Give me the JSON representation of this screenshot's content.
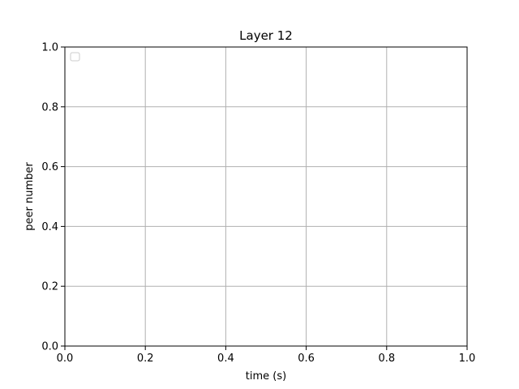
{
  "chart_data": {
    "type": "line",
    "title": "Layer 12",
    "xlabel": "time (s)",
    "ylabel": "peer number",
    "xlim": [
      0.0,
      1.0
    ],
    "ylim": [
      0.0,
      1.0
    ],
    "x_ticks": [
      0.0,
      0.2,
      0.4,
      0.6,
      0.8,
      1.0
    ],
    "y_ticks": [
      0.0,
      0.2,
      0.4,
      0.6,
      0.8,
      1.0
    ],
    "x_tick_labels": [
      "0.0",
      "0.2",
      "0.4",
      "0.6",
      "0.8",
      "1.0"
    ],
    "y_tick_labels": [
      "0.0",
      "0.2",
      "0.4",
      "0.6",
      "0.8",
      "1.0"
    ],
    "series": [],
    "grid": true,
    "legend": {
      "placement": "top-left",
      "entries": []
    }
  },
  "colors": {
    "grid": "#b0b0b0",
    "axes": "#000000",
    "legend_border": "#cccccc",
    "background": "#ffffff"
  }
}
